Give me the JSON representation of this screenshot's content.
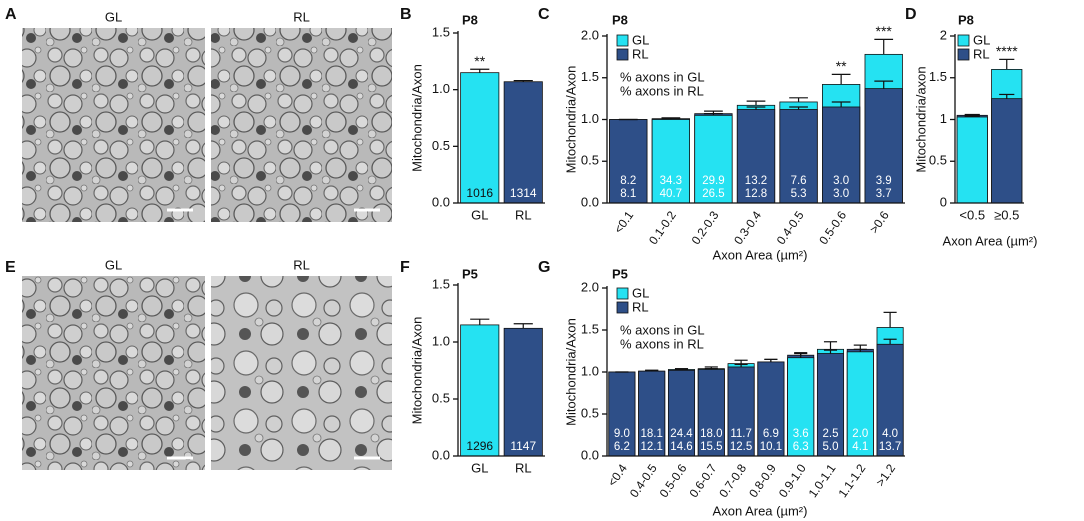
{
  "images": [
    {
      "panel": "A",
      "labels": [
        "GL",
        "RL"
      ]
    },
    {
      "panel": "E",
      "labels": [
        "GL",
        "RL"
      ]
    }
  ],
  "chart_data": [
    {
      "panel": "B",
      "type": "bar",
      "title": "P8",
      "categories": [
        "GL",
        "RL"
      ],
      "values": [
        1.15,
        1.07
      ],
      "errors": [
        0.03,
        0.01
      ],
      "colors": [
        "#25e2f2",
        "#2e4f88"
      ],
      "bar_labels": [
        1016,
        1314
      ],
      "annotations": [
        "**",
        null
      ],
      "ylabel": "Mitochondria/Axon",
      "ylim": [
        0,
        1.5
      ],
      "yticks": [
        {
          "value": 0,
          "label": "0.0"
        },
        {
          "value": 0.5,
          "label": "0.5"
        },
        {
          "value": 1,
          "label": "1.0"
        },
        {
          "value": 1.5,
          "label": "1.5"
        }
      ]
    },
    {
      "panel": "C",
      "type": "overlap_bar",
      "title": "P8",
      "categories": [
        "<0.1",
        "0.1-0.2",
        "0.2-0.3",
        "0.3-0.4",
        "0.4-0.5",
        "0.5-0.6",
        ">0.6"
      ],
      "series": [
        {
          "name": "GL",
          "color": "#25e2f2",
          "values": [
            1.0,
            1.0,
            1.05,
            1.17,
            1.21,
            1.42,
            1.78
          ],
          "errors": [
            0,
            0.01,
            0.02,
            0.05,
            0.05,
            0.12,
            0.18
          ],
          "labels": [
            "8.2",
            "34.3",
            "29.9",
            "13.2",
            "7.6",
            "3.0",
            "3.9"
          ]
        },
        {
          "name": "RL",
          "color": "#2e4f88",
          "values": [
            1.0,
            1.01,
            1.07,
            1.12,
            1.12,
            1.15,
            1.37
          ],
          "errors": [
            0,
            0.01,
            0.03,
            0.03,
            0.03,
            0.06,
            0.09
          ],
          "labels": [
            "8.1",
            "40.7",
            "26.5",
            "12.8",
            "5.3",
            "3.0",
            "3.7"
          ]
        }
      ],
      "legend_notes": [
        "% axons in GL",
        "% axons in RL"
      ],
      "annotations": [
        null,
        null,
        null,
        null,
        null,
        "**",
        "***"
      ],
      "ylabel": "Mitochondria/Axon",
      "xlabel": "Axon Area (µm²)",
      "ylim": [
        0,
        2
      ],
      "yticks": [
        {
          "value": 0,
          "label": "0.0"
        },
        {
          "value": 0.5,
          "label": "0.5"
        },
        {
          "value": 1,
          "label": "1.0"
        },
        {
          "value": 1.5,
          "label": "1.5"
        },
        {
          "value": 2,
          "label": "2.0"
        }
      ]
    },
    {
      "panel": "D",
      "type": "overlap_bar",
      "title": "P8",
      "categories": [
        "<0.5",
        "≥0.5"
      ],
      "series": [
        {
          "name": "GL",
          "color": "#25e2f2",
          "values": [
            1.03,
            1.6
          ],
          "errors": [
            0.01,
            0.12
          ]
        },
        {
          "name": "RL",
          "color": "#2e4f88",
          "values": [
            1.05,
            1.25
          ],
          "errors": [
            0.01,
            0.05
          ]
        }
      ],
      "annotations": [
        null,
        "****"
      ],
      "ylabel": "Mitochondria/axon",
      "xlabel": "Axon Area (µm²)",
      "ylim": [
        0,
        2
      ],
      "yticks": [
        0,
        0.5,
        1,
        1.5,
        2
      ]
    },
    {
      "panel": "F",
      "type": "bar",
      "title": "P5",
      "categories": [
        "GL",
        "RL"
      ],
      "values": [
        1.15,
        1.12
      ],
      "errors": [
        0.05,
        0.04
      ],
      "colors": [
        "#25e2f2",
        "#2e4f88"
      ],
      "bar_labels": [
        1296,
        1147
      ],
      "annotations": [
        null,
        null
      ],
      "ylabel": "Mitochondria/Axon",
      "ylim": [
        0,
        1.5
      ],
      "yticks": [
        {
          "value": 0,
          "label": "0.0"
        },
        {
          "value": 0.5,
          "label": "0.5"
        },
        {
          "value": 1,
          "label": "1.0"
        },
        {
          "value": 1.5,
          "label": "1.5"
        }
      ]
    },
    {
      "panel": "G",
      "type": "overlap_bar",
      "title": "P5",
      "categories": [
        "<0.4",
        "0.4-0.5",
        "0.5-0.6",
        "0.6-0.7",
        "0.7-0.8",
        "0.8-0.9",
        "0.9-1.0",
        "1.0-1.1",
        "1.1-1.2",
        ">1.2"
      ],
      "series": [
        {
          "name": "GL",
          "color": "#25e2f2",
          "values": [
            1.0,
            1.01,
            1.03,
            1.04,
            1.1,
            1.12,
            1.17,
            1.27,
            1.24,
            1.53
          ],
          "errors": [
            0,
            0.01,
            0.01,
            0.02,
            0.04,
            0.03,
            0.05,
            0.09,
            0.03,
            0.18
          ],
          "labels": [
            "9.0",
            "18.1",
            "24.4",
            "18.0",
            "11.7",
            "6.9",
            "3.6",
            "2.5",
            "2.0",
            "4.0"
          ]
        },
        {
          "name": "RL",
          "color": "#2e4f88",
          "values": [
            1.0,
            1.01,
            1.02,
            1.03,
            1.06,
            1.12,
            1.2,
            1.22,
            1.27,
            1.33
          ],
          "errors": [
            0,
            0.01,
            0.01,
            0.01,
            0.03,
            0.03,
            0.03,
            0.04,
            0.05,
            0.06
          ],
          "labels": [
            "6.2",
            "12.1",
            "14.6",
            "15.5",
            "12.5",
            "10.1",
            "6.3",
            "5.0",
            "4.1",
            "13.7"
          ]
        }
      ],
      "legend_notes": [
        "% axons in GL",
        "% axons in RL"
      ],
      "annotations": [
        null,
        null,
        null,
        null,
        null,
        null,
        null,
        null,
        null,
        null
      ],
      "ylabel": "Mitochondria/Axon",
      "xlabel": "Axon Area (µm²)",
      "ylim": [
        0,
        2
      ],
      "yticks": [
        {
          "value": 0,
          "label": "0.0"
        },
        {
          "value": 0.5,
          "label": "0.5"
        },
        {
          "value": 1,
          "label": "1.0"
        },
        {
          "value": 1.5,
          "label": "1.5"
        },
        {
          "value": 2,
          "label": "2.0"
        }
      ]
    }
  ]
}
